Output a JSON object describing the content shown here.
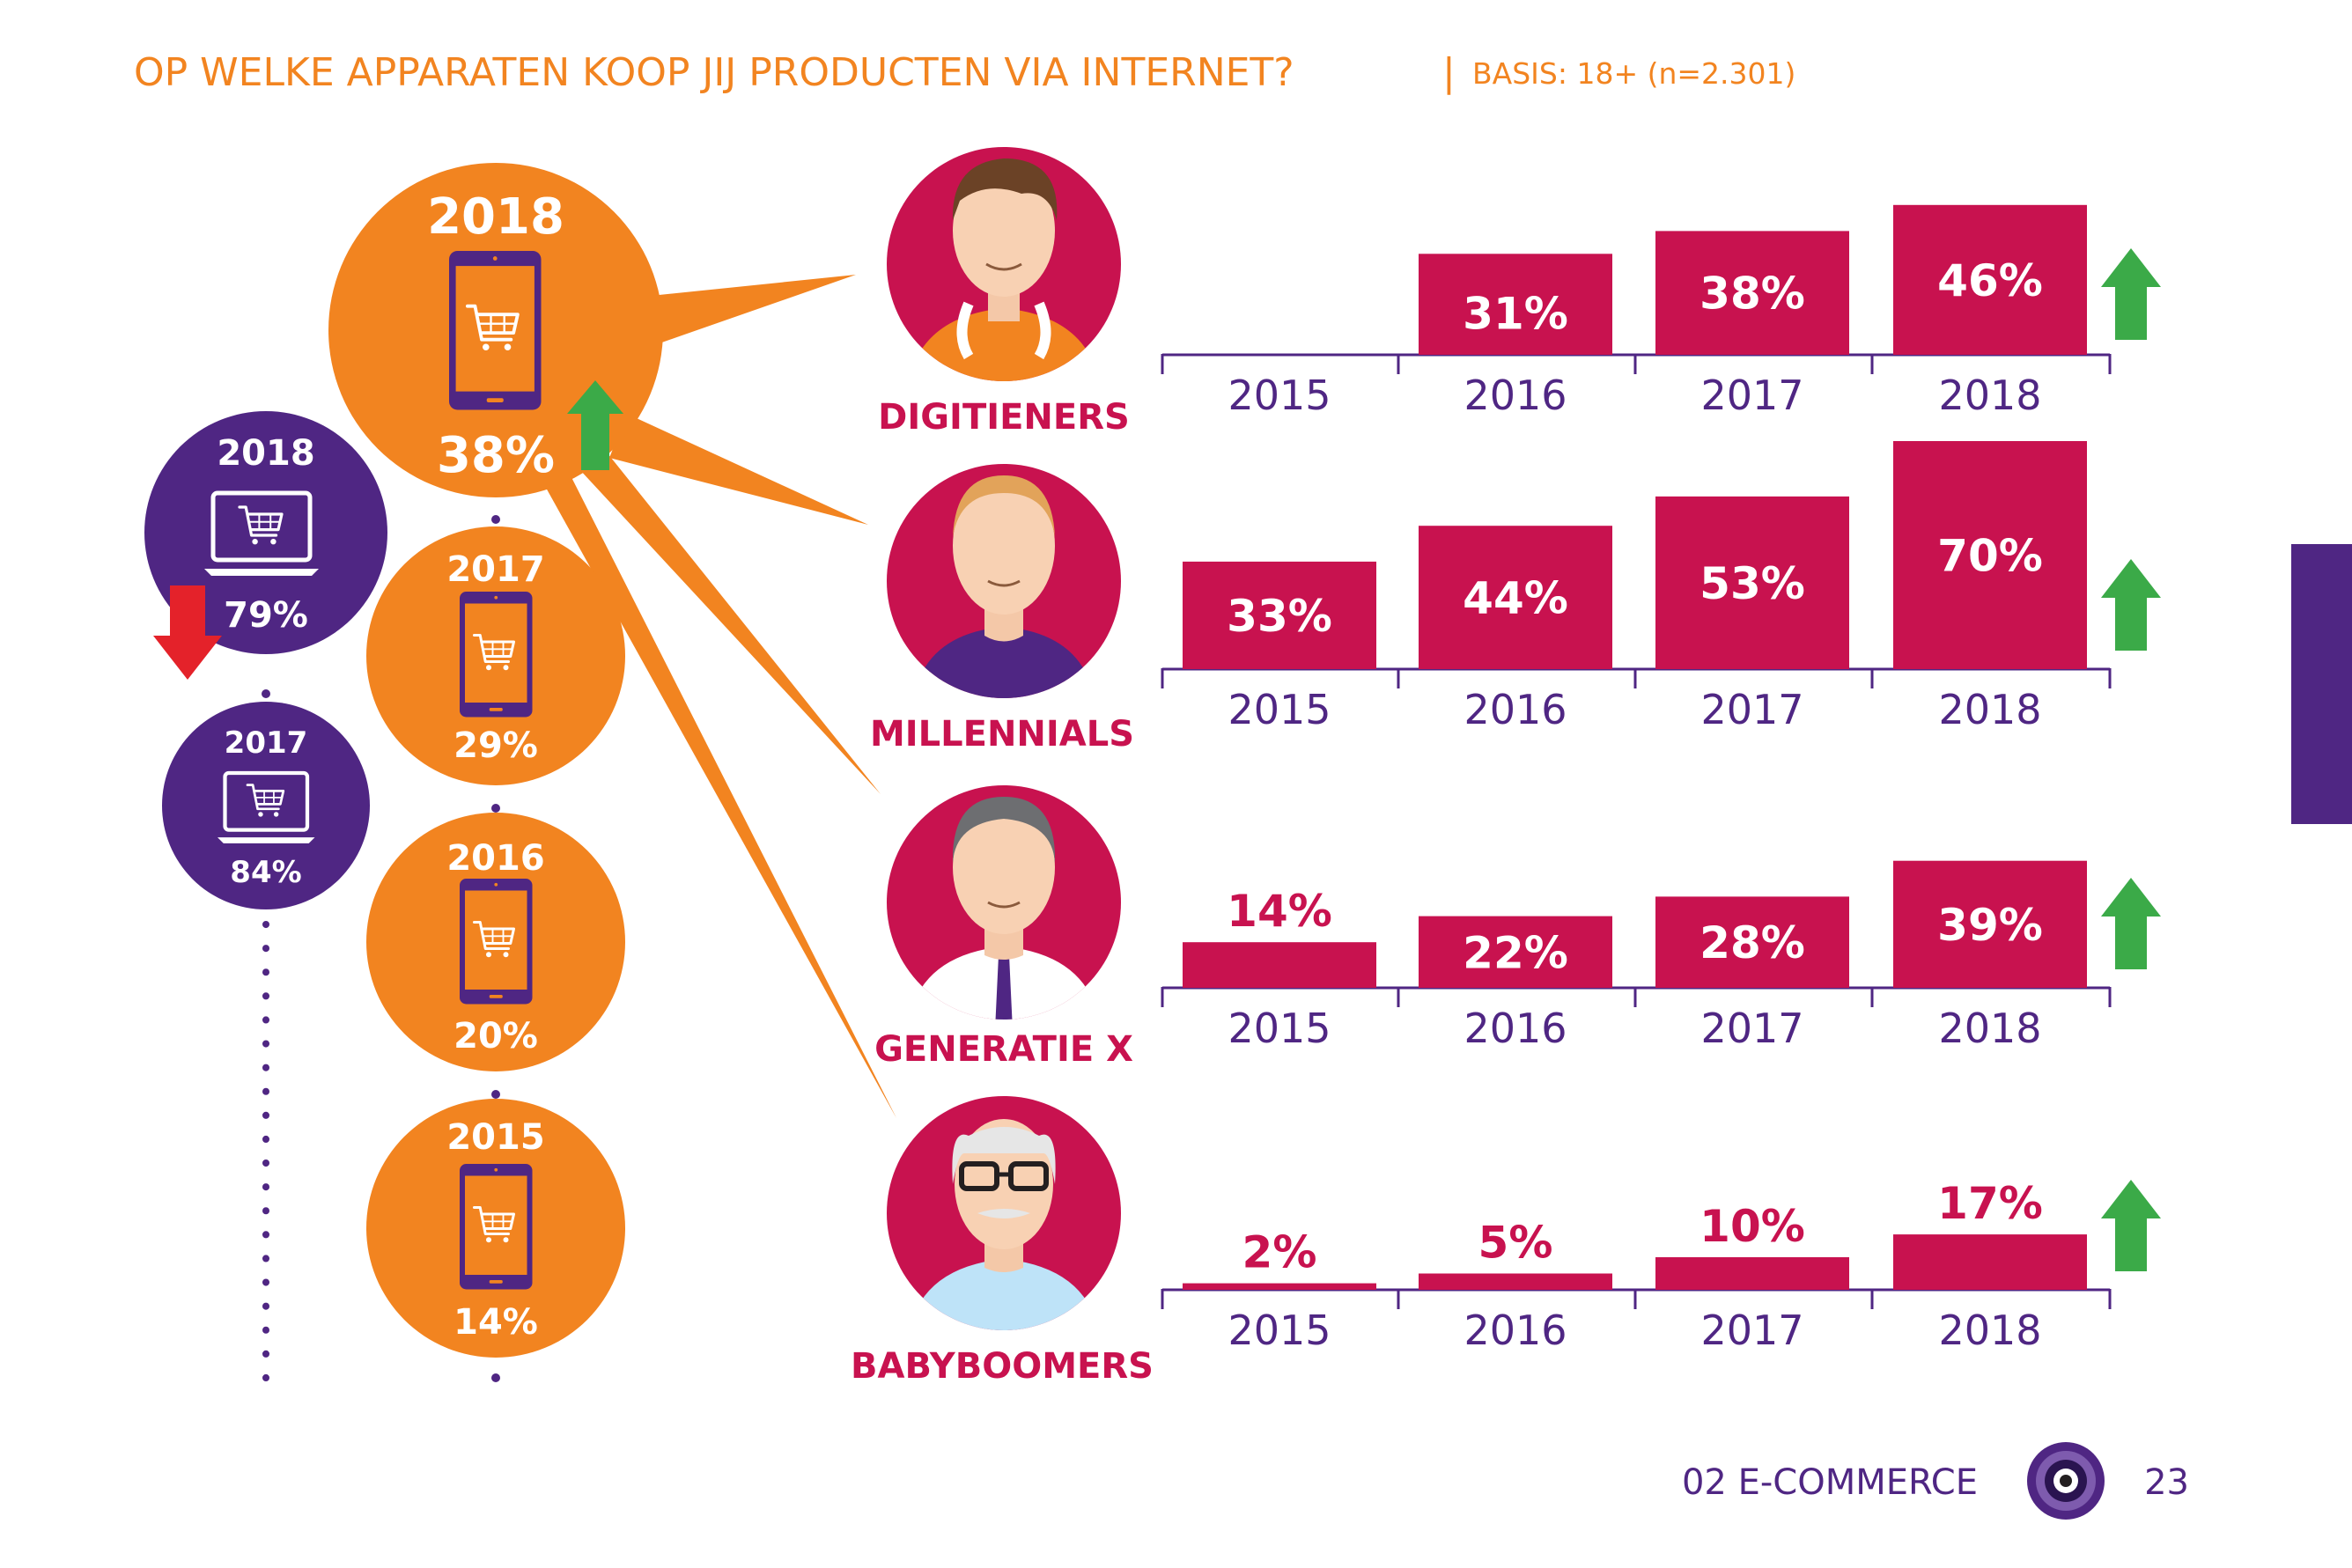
{
  "header": {
    "question": "OP WELKE APPARATEN KOOP JIJ PRODUCTEN VIA INTERNET?",
    "separator": "|",
    "basis": "BASIS: 18+ (n=2.301)"
  },
  "footer": {
    "section": "02 E-COMMERCE",
    "page_number": "23"
  },
  "colors": {
    "orange": "#F28420",
    "purple": "#4F2683",
    "magenta": "#C8124F",
    "green": "#3BAA48",
    "red": "#E4222A"
  },
  "icons": {
    "smartphone": "smartphone-cart-icon",
    "laptop": "laptop-cart-icon",
    "arrow_up": "arrow-up-icon",
    "arrow_down": "arrow-down-icon"
  },
  "smartphone_timeline": [
    {
      "year": "2018",
      "value": "38%",
      "trend": "up"
    },
    {
      "year": "2017",
      "value": "29%"
    },
    {
      "year": "2016",
      "value": "20%"
    },
    {
      "year": "2015",
      "value": "14%"
    }
  ],
  "laptop_timeline": [
    {
      "year": "2018",
      "value": "79%",
      "trend": "down"
    },
    {
      "year": "2017",
      "value": "84%"
    }
  ],
  "chart_data": [
    {
      "type": "bar",
      "group": "DIGITIENERS",
      "categories": [
        "2015",
        "2016",
        "2017",
        "2018"
      ],
      "values": [
        null,
        31,
        38,
        46
      ],
      "labels": [
        "",
        "31%",
        "38%",
        "46%"
      ],
      "ylim": [
        0,
        70
      ],
      "trend": "up",
      "avatar": "teen-with-headphones"
    },
    {
      "type": "bar",
      "group": "MILLENNIALS",
      "categories": [
        "2015",
        "2016",
        "2017",
        "2018"
      ],
      "values": [
        33,
        44,
        53,
        70
      ],
      "labels": [
        "33%",
        "44%",
        "53%",
        "70%"
      ],
      "ylim": [
        0,
        70
      ],
      "trend": "up",
      "avatar": "young-adult"
    },
    {
      "type": "bar",
      "group": "GENERATIE X",
      "categories": [
        "2015",
        "2016",
        "2017",
        "2018"
      ],
      "values": [
        14,
        22,
        28,
        39
      ],
      "labels": [
        "14%",
        "22%",
        "28%",
        "39%"
      ],
      "ylim": [
        0,
        70
      ],
      "trend": "up",
      "avatar": "man-with-tie"
    },
    {
      "type": "bar",
      "group": "BABYBOOMERS",
      "categories": [
        "2015",
        "2016",
        "2017",
        "2018"
      ],
      "values": [
        2,
        5,
        10,
        17
      ],
      "labels": [
        "2%",
        "5%",
        "10%",
        "17%"
      ],
      "ylim": [
        0,
        70
      ],
      "trend": "up",
      "avatar": "senior-with-glasses"
    }
  ]
}
